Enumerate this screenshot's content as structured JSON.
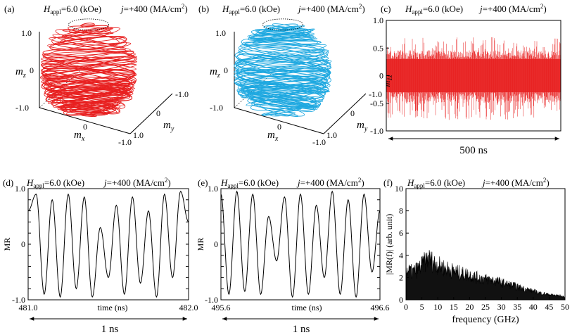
{
  "figure": {
    "panels": [
      {
        "id": "a",
        "label": "(a)",
        "h_symbol": "H",
        "h_sub": "appl",
        "h_value": "=6.0 (kOe)",
        "j_symbol": "j",
        "j_value": "=+400 (MA/cm",
        "j_exp": "2",
        "j_close": ")",
        "axes": {
          "mz": "m",
          "mz_sub": "z",
          "mx": "m",
          "mx_sub": "x",
          "my": "m",
          "my_sub": "y"
        },
        "ticks": {
          "z_top": "1.0",
          "z_mid": "0",
          "z_bottom": "-1.0",
          "x_mid": "0",
          "x_end": "-1.0",
          "y_start": "-1.0",
          "y_mid": "0",
          "y_end": "1.0"
        },
        "color": "#e82020"
      },
      {
        "id": "b",
        "label": "(b)",
        "h_symbol": "H",
        "h_sub": "appl",
        "h_value": "=6.0 (kOe)",
        "j_symbol": "j",
        "j_value": "=+400 (MA/cm",
        "j_exp": "2",
        "j_close": ")",
        "axes": {
          "mz": "m",
          "mz_sub": "z",
          "mx": "m",
          "mx_sub": "x",
          "my": "m",
          "my_sub": "y"
        },
        "ticks": {
          "z_top": "1.0",
          "z_mid": "0",
          "z_bottom": "-1.0",
          "x_mid": "0",
          "x_end": "-1.0",
          "y_start": "-1.0",
          "y_mid": "0",
          "y_end": "1.0"
        },
        "color": "#1ea8e0"
      },
      {
        "id": "c",
        "label": "(c)",
        "h_symbol": "H",
        "h_sub": "appl",
        "h_value": "=6.0 (kOe)",
        "j_symbol": "j",
        "j_value": "=+400 (MA/cm",
        "j_exp": "2",
        "j_close": ")",
        "ylabel": "m",
        "ylabel_sub": "1z",
        "yticks": [
          "1.0",
          "0.5",
          "0",
          "-0.5",
          "-1.0"
        ],
        "span": "500 ns",
        "color": "#e82020"
      },
      {
        "id": "d",
        "label": "(d)",
        "h_symbol": "H",
        "h_sub": "appl",
        "h_value": "=6.0 (kOe)",
        "j_symbol": "j",
        "j_value": "=+400 (MA/cm",
        "j_exp": "2",
        "j_close": ")",
        "ylabel": "MR",
        "yticks": [
          "1.0",
          "0.8",
          "0.6",
          "0.4",
          "0.2",
          "0",
          "-0.2",
          "-0.4",
          "-0.6",
          "-0.8",
          "-1.0"
        ],
        "x_start": "481.0",
        "x_end": "482.0",
        "xlabel": "time (ns)",
        "span": "1 ns"
      },
      {
        "id": "e",
        "label": "(e)",
        "h_symbol": "H",
        "h_sub": "appl",
        "h_value": "=6.0 (kOe)",
        "j_symbol": "j",
        "j_value": "=+400 (MA/cm",
        "j_exp": "2",
        "j_close": ")",
        "ylabel": "MR",
        "yticks": [
          "1.0",
          "0.8",
          "0.6",
          "0.4",
          "0.2",
          "0",
          "-0.2",
          "-0.4",
          "-0.6",
          "-0.8",
          "-1.0"
        ],
        "x_start": "495.6",
        "x_end": "496.6",
        "xlabel": "time (ns)",
        "span": "1 ns"
      },
      {
        "id": "f",
        "label": "(f)",
        "h_symbol": "H",
        "h_sub": "appl",
        "h_value": "=6.0 (kOe)",
        "j_symbol": "j",
        "j_value": "=+400 (MA/cm",
        "j_exp": "2",
        "j_close": ")",
        "ylabel": "|MR(f)| (arb. unit)",
        "yticks": [
          "10",
          "8",
          "6",
          "4",
          "2",
          "0"
        ],
        "xticks": [
          "0",
          "5",
          "10",
          "15",
          "20",
          "25",
          "30",
          "35",
          "40",
          "45",
          "50"
        ],
        "xlabel": "frequency (GHz)"
      }
    ]
  },
  "chart_data": [
    {
      "type": "line",
      "panel": "c",
      "xlabel": "",
      "ylabel": "m1z",
      "ylim": [
        -1.0,
        1.0
      ],
      "span": "500 ns",
      "series": [
        {
          "values_envelope": {
            "typical_max": 0.3,
            "typical_min": -0.3,
            "peak_max": 0.7,
            "peak_min": -0.8
          }
        }
      ]
    },
    {
      "type": "line",
      "panel": "d",
      "xlabel": "time (ns)",
      "ylabel": "MR",
      "xlim": [
        481.0,
        482.0
      ],
      "ylim": [
        -1.0,
        1.0
      ],
      "series": [
        {
          "x": [
            481.0,
            481.05,
            481.1,
            481.15,
            481.2,
            481.25,
            481.3,
            481.35,
            481.4,
            481.45,
            481.5,
            481.55,
            481.6,
            481.65,
            481.7,
            481.75,
            481.8,
            481.85,
            481.9,
            481.95,
            482.0
          ],
          "values": [
            0.6,
            0.9,
            -0.9,
            0.8,
            -0.95,
            0.9,
            -0.8,
            0.85,
            -0.95,
            0.3,
            -0.6,
            0.7,
            -0.9,
            0.85,
            -0.7,
            0.6,
            -0.95,
            0.9,
            -0.6,
            0.95,
            0.4
          ]
        }
      ]
    },
    {
      "type": "line",
      "panel": "e",
      "xlabel": "time (ns)",
      "ylabel": "MR",
      "xlim": [
        495.6,
        496.6
      ],
      "ylim": [
        -1.0,
        1.0
      ],
      "series": [
        {
          "x": [
            495.6,
            495.65,
            495.7,
            495.75,
            495.8,
            495.85,
            495.9,
            495.95,
            496.0,
            496.05,
            496.1,
            496.15,
            496.2,
            496.25,
            496.3,
            496.35,
            496.4,
            496.45,
            496.5,
            496.55,
            496.6
          ],
          "values": [
            0.9,
            -0.9,
            0.95,
            -0.85,
            0.9,
            -0.9,
            0.5,
            -0.3,
            0.85,
            -0.95,
            0.9,
            -0.9,
            0.7,
            -0.6,
            0.95,
            -0.9,
            0.8,
            -0.95,
            0.9,
            -0.5,
            0.6
          ]
        }
      ]
    },
    {
      "type": "area",
      "panel": "f",
      "xlabel": "frequency (GHz)",
      "ylabel": "|MR(f)| (arb. unit)",
      "xlim": [
        0,
        50
      ],
      "ylim": [
        0,
        10
      ],
      "series": [
        {
          "x": [
            0,
            2,
            4,
            5,
            6,
            7,
            8,
            10,
            12,
            15,
            18,
            20,
            22,
            25,
            28,
            30,
            32,
            35,
            38,
            40,
            42,
            45,
            48,
            50
          ],
          "values": [
            3.4,
            3.2,
            3.6,
            4.0,
            4.4,
            4.8,
            4.5,
            4.0,
            3.7,
            3.3,
            3.0,
            2.9,
            2.6,
            2.4,
            2.2,
            2.0,
            1.8,
            1.5,
            1.2,
            1.0,
            0.8,
            0.6,
            0.5,
            0.3
          ]
        }
      ]
    }
  ]
}
